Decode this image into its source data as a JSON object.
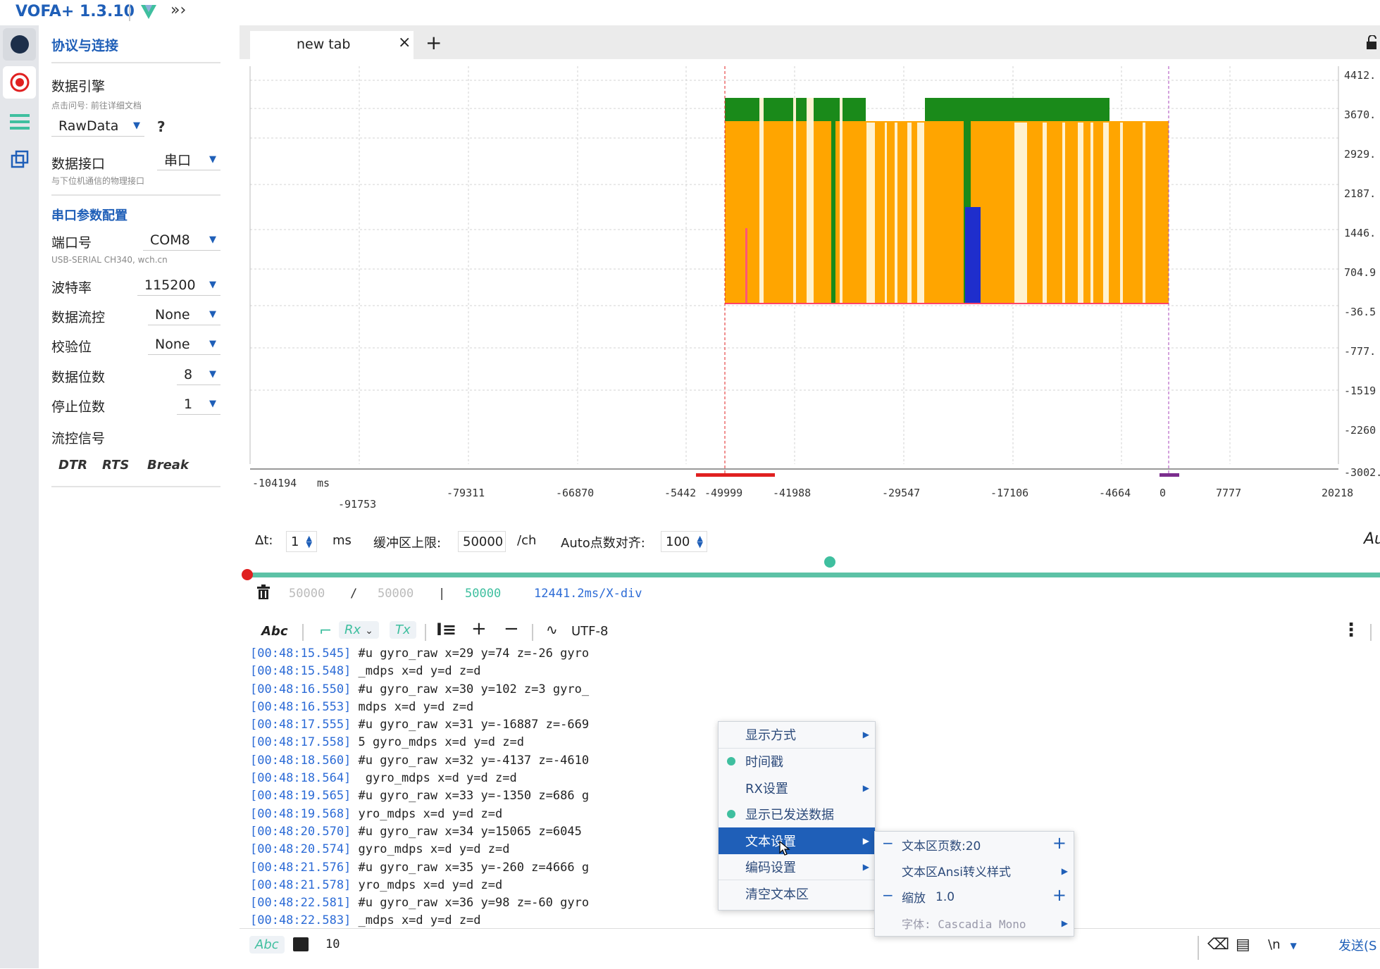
{
  "app": {
    "title": "VOFA+ 1.3.10"
  },
  "colors": {
    "accent": "#1f5fb8",
    "green": "#1a8a1a",
    "orange": "#ffa500",
    "blue": "#1f2ecc",
    "teal": "#5cc2a6",
    "red": "#e02020"
  },
  "panel": {
    "title": "协议与连接",
    "engine_label": "数据引擎",
    "engine_hint": "点击问号: 前往详细文档",
    "engine_value": "RawData",
    "help": "?",
    "iface_label": "数据接口",
    "iface_value": "串口",
    "iface_hint": "与下位机通信的物理接口",
    "serial_title": "串口参数配置",
    "port_label": "端口号",
    "port_value": "COM8",
    "port_hint": "USB-SERIAL CH340, wch.cn",
    "baud_label": "波特率",
    "baud_value": "115200",
    "flow_label": "数据流控",
    "flow_value": "None",
    "parity_label": "校验位",
    "parity_value": "None",
    "databits_label": "数据位数",
    "databits_value": "8",
    "stopbits_label": "停止位数",
    "stopbits_value": "1",
    "signal_label": "流控信号",
    "dtr": "DTR",
    "rts": "RTS",
    "brk": "Break"
  },
  "tabs": {
    "label": "new tab",
    "close": "×",
    "add": "+"
  },
  "chart": {
    "y_ticks": [
      "4412.",
      "3670.",
      "2929.",
      "2187.",
      "1446.",
      "704.9",
      "-36.5",
      "-777.",
      "-1519",
      "-2260",
      "-3002."
    ],
    "x_ticks_top": [
      "-104194",
      "ms",
      "-79311",
      "-66870",
      "-5442",
      "-49999",
      "-41988",
      "-29547",
      "-17106",
      "-4664",
      "0",
      "7777",
      "20218"
    ],
    "x_tick_low": "-91753"
  },
  "controls": {
    "dt_label": "Δt:",
    "dt_value": "1",
    "dt_unit": "ms",
    "buffer_label": "缓冲区上限:",
    "buffer_value": "50000",
    "buffer_unit": "/ch",
    "auto_label": "Auto点数对齐:",
    "auto_value": "100",
    "right_cut": "Au"
  },
  "stats": {
    "a": "50000",
    "sep1": "/",
    "b": "50000",
    "sep2": "|",
    "c": "50000",
    "div": "12441.2ms/X-div"
  },
  "textbar": {
    "abc": "Abc",
    "rx": "Rx",
    "tx": "Tx",
    "plus": "+",
    "minus": "−",
    "encoding": "UTF-8"
  },
  "lines": [
    {
      "ts": "[00:48:15.545]",
      "msg": " #u gyro_raw x=29 y=74 z=-26 gyro"
    },
    {
      "ts": "[00:48:15.548]",
      "msg": " _mdps x=d y=d z=d"
    },
    {
      "ts": "[00:48:16.550]",
      "msg": " #u gyro_raw x=30 y=102 z=3 gyro_"
    },
    {
      "ts": "[00:48:16.553]",
      "msg": " mdps x=d y=d z=d"
    },
    {
      "ts": "[00:48:17.555]",
      "msg": " #u gyro_raw x=31 y=-16887 z=-669"
    },
    {
      "ts": "[00:48:17.558]",
      "msg": " 5 gyro_mdps x=d y=d z=d"
    },
    {
      "ts": "[00:48:18.560]",
      "msg": " #u gyro_raw x=32 y=-4137 z=-4610"
    },
    {
      "ts": "[00:48:18.564]",
      "msg": "  gyro_mdps x=d y=d z=d"
    },
    {
      "ts": "[00:48:19.565]",
      "msg": " #u gyro_raw x=33 y=-1350 z=686 g"
    },
    {
      "ts": "[00:48:19.568]",
      "msg": " yro_mdps x=d y=d z=d"
    },
    {
      "ts": "[00:48:20.570]",
      "msg": " #u gyro_raw x=34 y=15065 z=6045"
    },
    {
      "ts": "[00:48:20.574]",
      "msg": " gyro_mdps x=d y=d z=d"
    },
    {
      "ts": "[00:48:21.576]",
      "msg": " #u gyro_raw x=35 y=-260 z=4666 g"
    },
    {
      "ts": "[00:48:21.578]",
      "msg": " yro_mdps x=d y=d z=d"
    },
    {
      "ts": "[00:48:22.581]",
      "msg": " #u gyro_raw x=36 y=98 z=-60 gyro"
    },
    {
      "ts": "[00:48:22.583]",
      "msg": " _mdps x=d y=d z=d"
    }
  ],
  "menu": {
    "display_mode": "显示方式",
    "timestamp": "时间戳",
    "rx_settings": "RX设置",
    "show_sent": "显示已发送数据",
    "text_settings": "文本设置",
    "encoding_settings": "编码设置",
    "clear_text": "清空文本区"
  },
  "submenu": {
    "pages": "文本区页数:20",
    "ansi": "文本区Ansi转义样式",
    "zoom_label": "缩放",
    "zoom_value": "1.0",
    "font": "字体: Cascadia Mono",
    "minus": "−",
    "plus": "+"
  },
  "bottom": {
    "abc": "Abc",
    "count": "10",
    "newline": "\\n",
    "send": "发送(S"
  }
}
